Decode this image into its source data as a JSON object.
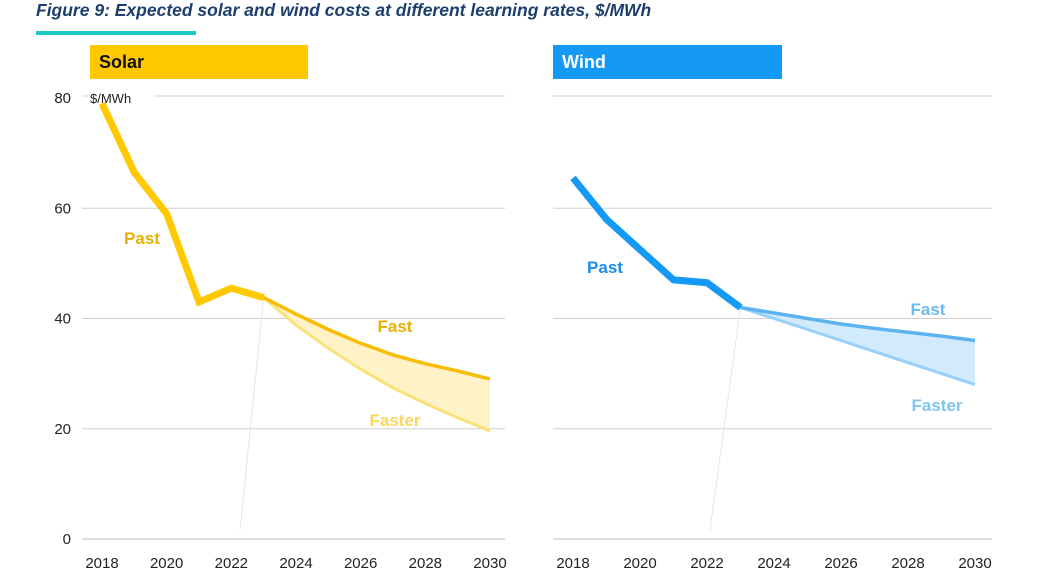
{
  "figure_title": "Figure 9: Expected solar and wind costs at different learning rates, $/MWh",
  "colors": {
    "solar_past": "#ffc800",
    "solar_fast": "#f7bd00",
    "solar_faster": "#fbe17a",
    "solar_band": "#fff2c6",
    "wind_past": "#1499f5",
    "wind_fast": "#5db3f2",
    "wind_faster": "#97d0f8",
    "wind_band": "#d2ebfc",
    "grid": "#cfcfcf",
    "accent": "#1ec8c8"
  },
  "chart_data": [
    {
      "type": "line",
      "panel": "Solar",
      "unit_label": "$/MWh",
      "ylim": [
        0,
        80
      ],
      "yticks": [
        "0",
        "20",
        "40",
        "60",
        "80"
      ],
      "xticks": [
        "2018",
        "2020",
        "2022",
        "2024",
        "2026",
        "2028",
        "2030"
      ],
      "grid": "horizontal",
      "series": [
        {
          "name": "Past",
          "x": [
            2018,
            2019,
            2020,
            2021,
            2022,
            2023
          ],
          "values": [
            79,
            66.5,
            59,
            43,
            45.5,
            43.8
          ]
        },
        {
          "name": "Fast",
          "x": [
            2023,
            2024,
            2025,
            2026,
            2027,
            2028,
            2029,
            2030
          ],
          "values": [
            43.8,
            40.8,
            38,
            35.5,
            33.4,
            31.8,
            30.5,
            29
          ]
        },
        {
          "name": "Faster",
          "x": [
            2023,
            2024,
            2025,
            2026,
            2027,
            2028,
            2029,
            2030
          ],
          "values": [
            43.8,
            38.8,
            34.6,
            30.8,
            27.4,
            24.6,
            22,
            19.6
          ]
        }
      ],
      "labels": [
        {
          "text": "Past",
          "series": "Past"
        },
        {
          "text": "Fast",
          "series": "Fast"
        },
        {
          "text": "Faster",
          "series": "Faster"
        }
      ]
    },
    {
      "type": "line",
      "panel": "Wind",
      "ylim": [
        0,
        80
      ],
      "xticks": [
        "2018",
        "2020",
        "2022",
        "2024",
        "2026",
        "2028",
        "2030"
      ],
      "grid": "horizontal",
      "series": [
        {
          "name": "Past",
          "x": [
            2018,
            2019,
            2020,
            2021,
            2022,
            2023
          ],
          "values": [
            65.5,
            58,
            52.5,
            47,
            46.5,
            42
          ]
        },
        {
          "name": "Fast",
          "x": [
            2023,
            2024,
            2025,
            2026,
            2027,
            2028,
            2029,
            2030
          ],
          "values": [
            42,
            41,
            40,
            39,
            38.2,
            37.5,
            36.8,
            36
          ]
        },
        {
          "name": "Faster",
          "x": [
            2023,
            2024,
            2025,
            2026,
            2027,
            2028,
            2029,
            2030
          ],
          "values": [
            42,
            40,
            38,
            36,
            34,
            32,
            30,
            28
          ]
        }
      ],
      "labels": [
        {
          "text": "Past",
          "series": "Past"
        },
        {
          "text": "Fast",
          "series": "Fast"
        },
        {
          "text": "Faster",
          "series": "Faster"
        }
      ]
    }
  ]
}
